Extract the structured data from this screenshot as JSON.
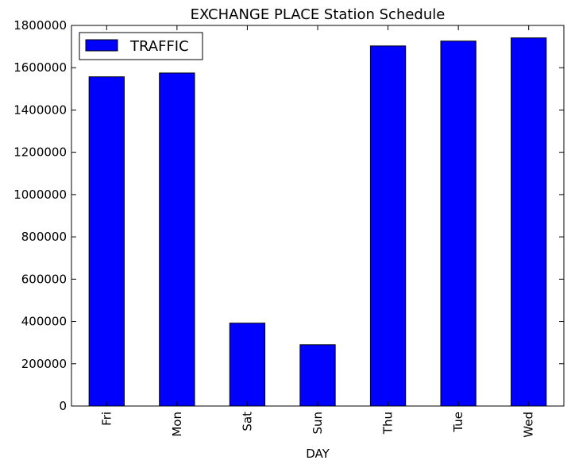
{
  "chart_data": {
    "type": "bar",
    "title": "EXCHANGE PLACE Station Schedule",
    "xlabel": "DAY",
    "ylabel": "",
    "categories": [
      "Fri",
      "Mon",
      "Sat",
      "Sun",
      "Thu",
      "Tue",
      "Wed"
    ],
    "series": [
      {
        "name": "TRAFFIC",
        "color": "#0000ff",
        "values": [
          1557000,
          1575000,
          392000,
          290000,
          1703000,
          1726000,
          1741000
        ]
      }
    ],
    "ylim": [
      0,
      1800000
    ],
    "yticks": [
      "0",
      "200000",
      "400000",
      "600000",
      "800000",
      "1000000",
      "1200000",
      "1400000",
      "1600000",
      "1800000"
    ],
    "legend_position": "top-left",
    "grid": false
  }
}
